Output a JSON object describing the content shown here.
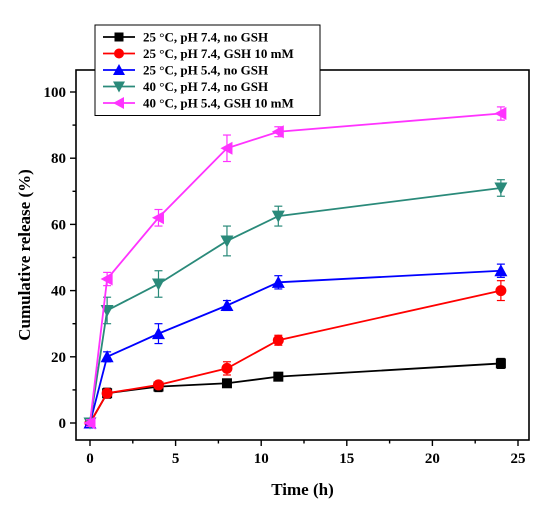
{
  "chart_data": {
    "type": "line",
    "xlabel": "Time (h)",
    "ylabel": "Cumulative release (%)",
    "xlim": [
      -1,
      26
    ],
    "ylim": [
      -5,
      105
    ],
    "x_ticks": [
      0,
      5,
      10,
      15,
      20,
      25
    ],
    "y_ticks": [
      0,
      20,
      40,
      60,
      80,
      100
    ],
    "x": [
      0,
      1,
      4,
      8,
      11,
      24
    ],
    "legend_position": "top-left",
    "series": [
      {
        "name": "25 °C, pH 7.4, no GSH",
        "color": "#000000",
        "marker": "square",
        "values": [
          0,
          9,
          11,
          12,
          14,
          18
        ],
        "errors": [
          1,
          1.5,
          1.5,
          1,
          1,
          1.5
        ]
      },
      {
        "name": "25 °C, pH 7.4, GSH 10 mM",
        "color": "#ff0000",
        "marker": "circle",
        "values": [
          0,
          9,
          11.5,
          16.5,
          25,
          40
        ],
        "errors": [
          1,
          1,
          1,
          2,
          1.5,
          3
        ]
      },
      {
        "name": "25 °C, pH 5.4, no GSH",
        "color": "#0000ff",
        "marker": "triangle-up",
        "values": [
          0,
          20,
          27,
          35.5,
          42.5,
          46
        ],
        "errors": [
          1,
          1.5,
          3,
          1.5,
          2,
          2
        ]
      },
      {
        "name": "40 °C, pH 7.4, no GSH",
        "color": "#2a8a7a",
        "marker": "triangle-down",
        "values": [
          0,
          34,
          42,
          55,
          62.5,
          71
        ],
        "errors": [
          1,
          4,
          4,
          4.5,
          3,
          2.5
        ]
      },
      {
        "name": "40 °C, pH 5.4, GSH 10 mM",
        "color": "#ff33ff",
        "marker": "triangle-left",
        "values": [
          0,
          43.5,
          62,
          83,
          88,
          93.5
        ],
        "errors": [
          1,
          2,
          2.5,
          4,
          1.5,
          2
        ]
      }
    ]
  }
}
